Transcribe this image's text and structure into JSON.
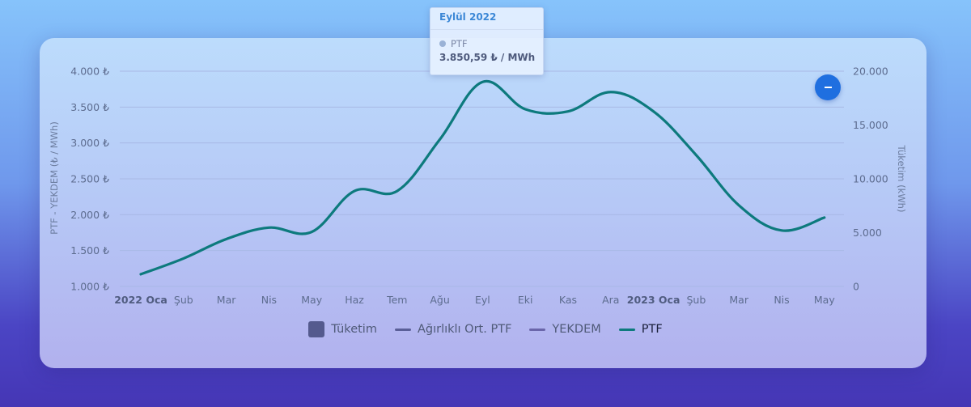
{
  "chart_data": {
    "type": "line",
    "categories": [
      "2022 Oca",
      "Şub",
      "Mar",
      "Nis",
      "May",
      "Haz",
      "Tem",
      "Ağu",
      "Eyl",
      "Eki",
      "Kas",
      "Ara",
      "2023 Oca",
      "Şub",
      "Mar",
      "Nis",
      "May"
    ],
    "bold_categories": [
      "2022 Oca",
      "2023 Oca"
    ],
    "series": [
      {
        "name": "PTF",
        "color": "#0d7a7d",
        "axis": "left",
        "values": [
          1170,
          1390,
          1660,
          1820,
          1760,
          2330,
          2330,
          3050,
          3850.59,
          3470,
          3440,
          3710,
          3440,
          2830,
          2130,
          1780,
          1960
        ]
      }
    ],
    "left_axis": {
      "label": "PTF - YEKDEM (₺ / MWh)",
      "range": [
        1000,
        4000
      ],
      "ticks": [
        "1.000 ₺",
        "1.500 ₺",
        "2.000 ₺",
        "2.500 ₺",
        "3.000 ₺",
        "3.500 ₺",
        "4.000 ₺"
      ]
    },
    "right_axis": {
      "label": "Tüketim (kWh)",
      "range": [
        0,
        20000
      ],
      "ticks": [
        "0",
        "5.000",
        "10.000",
        "15.000",
        "20.000"
      ]
    },
    "grid": true,
    "legend": {
      "position": "bottom",
      "items": [
        {
          "label": "Tüketim",
          "kind": "box",
          "color": "#545a8e",
          "active": false
        },
        {
          "label": "Ağırlıklı Ort. PTF",
          "kind": "line",
          "color": "#5a5f98",
          "active": false
        },
        {
          "label": "YEKDEM",
          "kind": "line",
          "color": "#6a66aa",
          "active": false
        },
        {
          "label": "PTF",
          "kind": "line",
          "color": "#0d7a7d",
          "active": true
        }
      ]
    }
  },
  "tooltip": {
    "title": "Eylül 2022",
    "series_name": "PTF",
    "value": "3.850,59 ₺ / MWh"
  },
  "controls": {
    "collapse_icon": "minus-icon"
  }
}
